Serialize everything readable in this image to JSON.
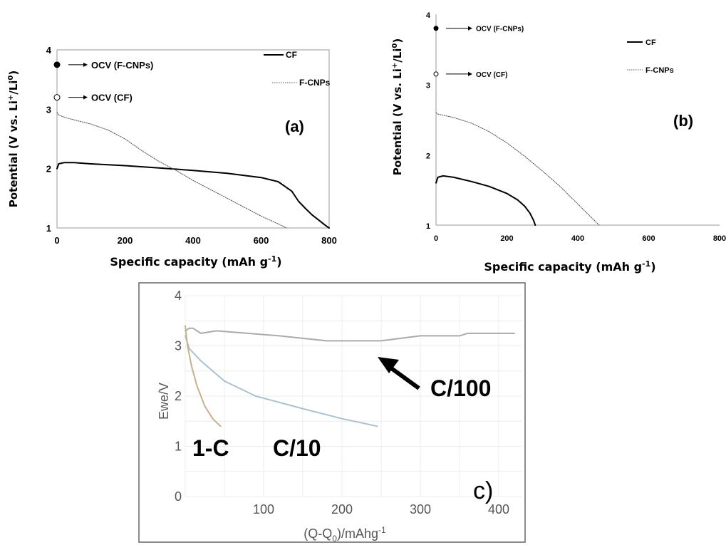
{
  "chart_data": [
    {
      "id": "a",
      "type": "line",
      "panel_label": "(a)",
      "xlabel": "Specific capacity (mAh g",
      "xlabel_sup": "-1",
      "xlabel_end": ")",
      "ylabel": "Potential (V vs. Li",
      "ylabel_sup1": "+",
      "ylabel_mid": "/Li",
      "ylabel_sup2": "0",
      "ylabel_end": ")",
      "xlim": [
        0,
        800
      ],
      "ylim": [
        1,
        4
      ],
      "xticks": [
        "0",
        "200",
        "400",
        "600",
        "800"
      ],
      "yticks": [
        "1",
        "2",
        "3",
        "4"
      ],
      "legend_position": "top-right",
      "series": [
        {
          "name": "CF",
          "style": "solid",
          "color": "#000000",
          "x": [
            0,
            5,
            20,
            50,
            100,
            200,
            300,
            400,
            500,
            600,
            650,
            690,
            710,
            730,
            750,
            770,
            790,
            800
          ],
          "y": [
            2.0,
            2.08,
            2.1,
            2.1,
            2.08,
            2.05,
            2.01,
            1.97,
            1.92,
            1.85,
            1.78,
            1.62,
            1.45,
            1.33,
            1.22,
            1.13,
            1.04,
            1.0
          ]
        },
        {
          "name": "F-CNPs",
          "style": "dotted",
          "color": "#555555",
          "x": [
            0,
            5,
            30,
            100,
            150,
            200,
            250,
            300,
            350,
            400,
            450,
            500,
            550,
            600,
            650,
            675
          ],
          "y": [
            2.95,
            2.9,
            2.85,
            2.75,
            2.65,
            2.5,
            2.3,
            2.12,
            1.97,
            1.8,
            1.65,
            1.5,
            1.35,
            1.2,
            1.07,
            1.0
          ]
        }
      ],
      "markers": [
        {
          "label": "OCV (F-CNPs)",
          "x": 0,
          "y": 3.75,
          "fill": "filled"
        },
        {
          "label": "OCV (CF)",
          "x": 0,
          "y": 3.2,
          "fill": "open"
        }
      ]
    },
    {
      "id": "b",
      "type": "line",
      "panel_label": "(b)",
      "xlabel": "Specific capacity (mAh g",
      "xlabel_sup": "-1",
      "xlabel_end": ")",
      "ylabel": "Potential (V vs. Li",
      "ylabel_sup1": "+",
      "ylabel_mid": "/Li",
      "ylabel_sup2": "0",
      "ylabel_end": ")",
      "xlim": [
        0,
        800
      ],
      "ylim": [
        1,
        4
      ],
      "xticks": [
        "0",
        "200",
        "400",
        "600",
        "800"
      ],
      "yticks": [
        "1",
        "2",
        "3",
        "4"
      ],
      "legend_position": "top-right",
      "series": [
        {
          "name": "CF",
          "style": "solid",
          "color": "#000000",
          "x": [
            0,
            5,
            20,
            50,
            100,
            150,
            200,
            230,
            250,
            265,
            275,
            280
          ],
          "y": [
            1.6,
            1.68,
            1.7,
            1.68,
            1.62,
            1.55,
            1.45,
            1.36,
            1.27,
            1.17,
            1.07,
            1.0
          ]
        },
        {
          "name": "F-CNPs",
          "style": "dotted",
          "color": "#555555",
          "x": [
            0,
            5,
            50,
            100,
            150,
            200,
            250,
            300,
            350,
            400,
            430,
            450,
            460
          ],
          "y": [
            2.6,
            2.58,
            2.53,
            2.45,
            2.33,
            2.17,
            1.98,
            1.77,
            1.55,
            1.3,
            1.15,
            1.05,
            1.0
          ]
        }
      ],
      "markers": [
        {
          "label": "OCV (F-CNPs)",
          "x": 0,
          "y": 3.8,
          "fill": "filled"
        },
        {
          "label": "OCV (CF)",
          "x": 0,
          "y": 3.15,
          "fill": "open"
        }
      ]
    },
    {
      "id": "c",
      "type": "line",
      "panel_label": "c)",
      "xlabel": "(Q-Q",
      "xlabel_sub": "0",
      "xlabel_end": ")/mAhg",
      "xlabel_sup": "-1",
      "ylabel": "Ewe/V",
      "xlim": [
        0,
        430
      ],
      "ylim": [
        0,
        4
      ],
      "xticks": [
        "100",
        "200",
        "300",
        "400"
      ],
      "yticks": [
        "0",
        "1",
        "2",
        "3",
        "4"
      ],
      "grid": true,
      "series": [
        {
          "name": "C/100",
          "style": "solid",
          "color": "#aaaaaa",
          "x": [
            0,
            5,
            10,
            15,
            20,
            40,
            80,
            120,
            150,
            180,
            200,
            250,
            300,
            350,
            360,
            400,
            420
          ],
          "y": [
            3.3,
            3.35,
            3.35,
            3.3,
            3.25,
            3.3,
            3.25,
            3.2,
            3.15,
            3.1,
            3.1,
            3.1,
            3.2,
            3.2,
            3.25,
            3.25,
            3.25
          ]
        },
        {
          "name": "C/10",
          "style": "solid",
          "color": "#a9c1d3",
          "x": [
            0,
            5,
            20,
            50,
            90,
            150,
            200,
            245
          ],
          "y": [
            3.2,
            2.95,
            2.7,
            2.3,
            2.0,
            1.75,
            1.55,
            1.4
          ]
        },
        {
          "name": "1-C",
          "style": "solid",
          "color": "#c9b08c",
          "x": [
            0,
            3,
            8,
            15,
            25,
            35,
            45
          ],
          "y": [
            3.4,
            3.0,
            2.6,
            2.2,
            1.8,
            1.55,
            1.4
          ]
        }
      ],
      "annotations": [
        "C/100",
        "1-C",
        "C/10"
      ]
    }
  ]
}
